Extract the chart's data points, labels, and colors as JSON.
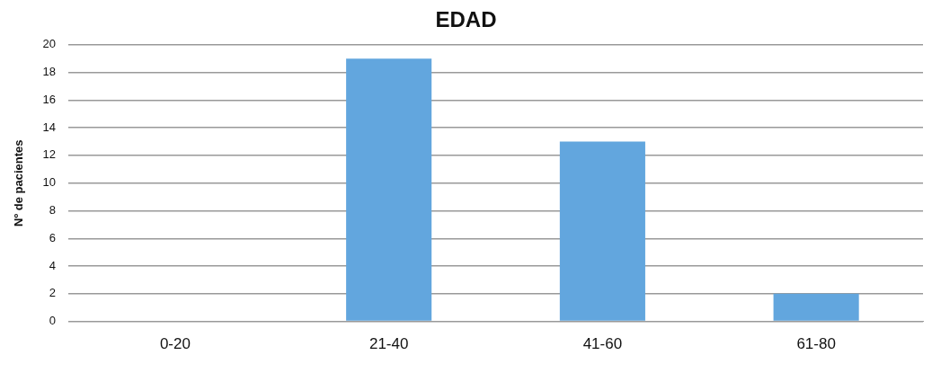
{
  "chart_data": {
    "type": "bar",
    "title": "EDAD",
    "ylabel": "Nº de pacientes",
    "categories": [
      "0-20",
      "21-40",
      "41-60",
      "61-80"
    ],
    "values": [
      0,
      19,
      13,
      2
    ],
    "color": "#62a6de",
    "ylim": [
      0,
      20
    ],
    "yticks": [
      0,
      2,
      4,
      6,
      8,
      10,
      12,
      14,
      16,
      18,
      20
    ],
    "grid": "y",
    "legend": false
  }
}
